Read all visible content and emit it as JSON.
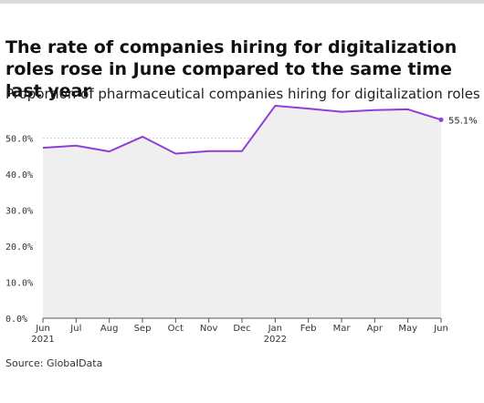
{
  "header": {
    "title": "The rate of companies hiring for digitalization roles rose in June compared to the same time last year",
    "subtitle": "Proportion of pharmaceutical companies hiring for digitalization roles"
  },
  "footer": {
    "source": "Source: GlobalData"
  },
  "colors": {
    "line": "#8e3fd9",
    "area": "#efefef",
    "grid": "#d6d6d6",
    "axis": "#555555"
  },
  "chart_data": {
    "type": "area",
    "title": "The rate of companies hiring for digitalization roles rose in June compared to the same time last year",
    "subtitle": "Proportion of pharmaceutical companies hiring for digitalization roles",
    "xlabel": "",
    "ylabel": "",
    "categories": [
      "Jun 2021",
      "Jul",
      "Aug",
      "Sep",
      "Oct",
      "Nov",
      "Dec",
      "Jan 2022",
      "Feb",
      "Mar",
      "Apr",
      "May",
      "Jun"
    ],
    "tick_labels": [
      {
        "line1": "Jun",
        "line2": "2021"
      },
      {
        "line1": "Jul",
        "line2": ""
      },
      {
        "line1": "Aug",
        "line2": ""
      },
      {
        "line1": "Sep",
        "line2": ""
      },
      {
        "line1": "Oct",
        "line2": ""
      },
      {
        "line1": "Nov",
        "line2": ""
      },
      {
        "line1": "Dec",
        "line2": ""
      },
      {
        "line1": "Jan",
        "line2": "2022"
      },
      {
        "line1": "Feb",
        "line2": ""
      },
      {
        "line1": "Mar",
        "line2": ""
      },
      {
        "line1": "Apr",
        "line2": ""
      },
      {
        "line1": "May",
        "line2": ""
      },
      {
        "line1": "Jun",
        "line2": ""
      }
    ],
    "values": [
      47.3,
      47.9,
      46.3,
      50.4,
      45.7,
      46.4,
      46.4,
      59.0,
      58.2,
      57.3,
      57.8,
      58.0,
      55.1
    ],
    "ylim": [
      0,
      60
    ],
    "yticks": [
      0,
      10,
      20,
      30,
      40,
      50
    ],
    "ytick_labels": [
      "0.0%",
      "10.0%",
      "20.0%",
      "30.0%",
      "40.0%",
      "50.0%"
    ],
    "last_point_label": "55.1%",
    "grid": true,
    "legend": "none"
  }
}
